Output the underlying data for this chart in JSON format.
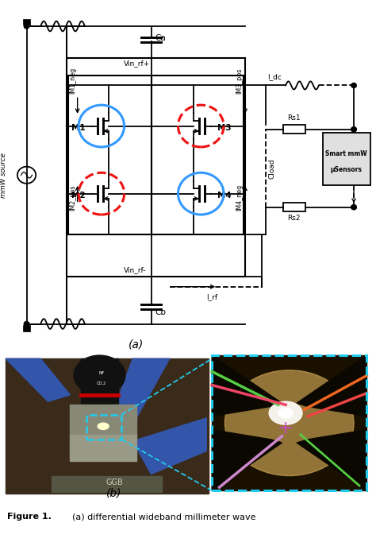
{
  "bg_color": "#ffffff",
  "lc": "#000000",
  "blue_circle_color": "#3399ff",
  "red_circle_color": "#ee1111",
  "cyan_color": "#22ccee",
  "smart_box_color": "#e0e0e0",
  "panel_a_label": "(a)",
  "panel_b_label": "(b)",
  "figure_caption": "Figure 1.",
  "figure_caption2": "(a) differential wideband millimeter wave"
}
